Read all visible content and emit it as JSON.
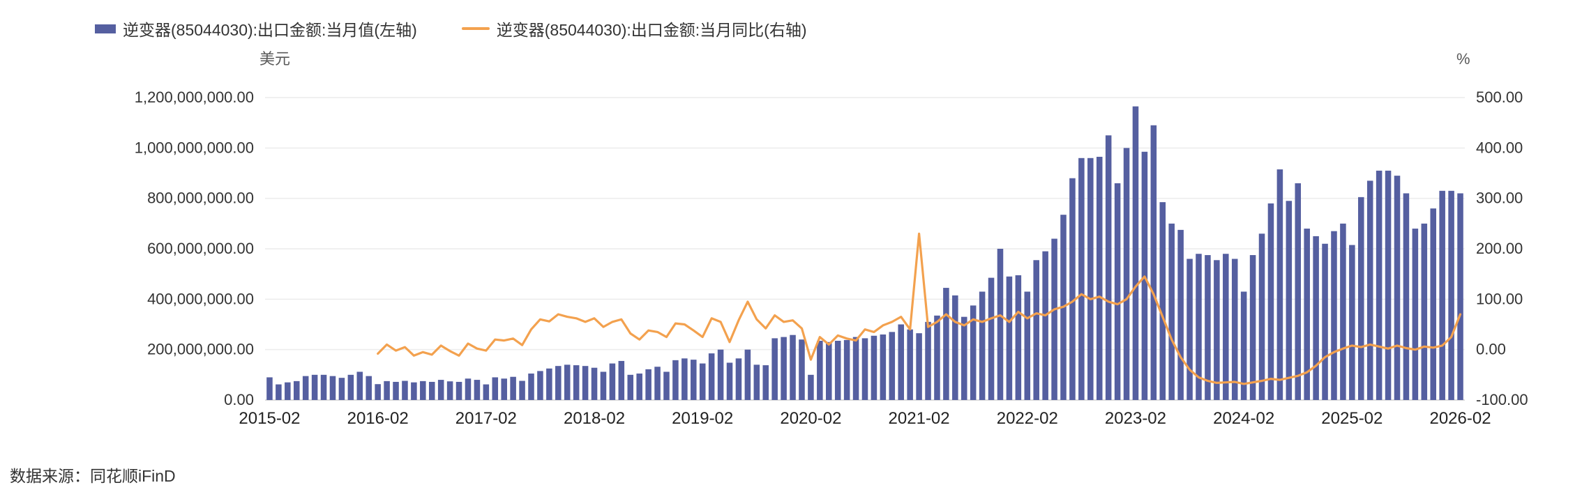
{
  "legend": {
    "items": [
      {
        "label": "逆变器(85044030):出口金额:当月值(左轴)",
        "type": "bar",
        "color": "#555FA0"
      },
      {
        "label": "逆变器(85044030):出口金额:当月同比(右轴)",
        "type": "line",
        "color": "#F3A14E"
      }
    ]
  },
  "footer": {
    "source": "数据来源：同花顺iFinD"
  },
  "chart_data": {
    "type": "combo",
    "bar_color": "#555FA0",
    "line_color": "#F3A14E",
    "grid": true,
    "legend_position": "top-left",
    "categories": [
      "2015-02",
      "2015-03",
      "2015-04",
      "2015-05",
      "2015-06",
      "2015-07",
      "2015-08",
      "2015-09",
      "2015-10",
      "2015-11",
      "2015-12",
      "2016-01",
      "2016-02",
      "2016-03",
      "2016-04",
      "2016-05",
      "2016-06",
      "2016-07",
      "2016-08",
      "2016-09",
      "2016-10",
      "2016-11",
      "2016-12",
      "2017-01",
      "2017-02",
      "2017-03",
      "2017-04",
      "2017-05",
      "2017-06",
      "2017-07",
      "2017-08",
      "2017-09",
      "2017-10",
      "2017-11",
      "2017-12",
      "2018-01",
      "2018-02",
      "2018-03",
      "2018-04",
      "2018-05",
      "2018-06",
      "2018-07",
      "2018-08",
      "2018-09",
      "2018-10",
      "2018-11",
      "2018-12",
      "2019-01",
      "2019-02",
      "2019-03",
      "2019-04",
      "2019-05",
      "2019-06",
      "2019-07",
      "2019-08",
      "2019-09",
      "2019-10",
      "2019-11",
      "2019-12",
      "2020-01",
      "2020-02",
      "2020-03",
      "2020-04",
      "2020-05",
      "2020-06",
      "2020-07",
      "2020-08",
      "2020-09",
      "2020-10",
      "2020-11",
      "2020-12",
      "2021-01",
      "2021-02",
      "2021-03",
      "2021-04",
      "2021-05",
      "2021-06",
      "2021-07",
      "2021-08",
      "2021-09",
      "2021-10",
      "2021-11",
      "2021-12",
      "2022-01",
      "2022-02",
      "2022-03",
      "2022-04",
      "2022-05",
      "2022-06",
      "2022-07",
      "2022-08",
      "2022-09",
      "2022-10",
      "2022-11",
      "2022-12",
      "2023-01",
      "2023-02",
      "2023-03",
      "2023-04",
      "2023-05",
      "2023-06",
      "2023-07",
      "2023-08",
      "2023-09",
      "2023-10",
      "2023-11",
      "2023-12",
      "2024-01",
      "2024-02",
      "2024-03",
      "2024-04",
      "2024-05",
      "2024-06",
      "2024-07",
      "2024-08",
      "2024-09",
      "2024-10",
      "2024-11",
      "2024-12",
      "2025-01",
      "2025-02",
      "2025-03",
      "2025-04",
      "2025-05",
      "2025-06",
      "2025-07",
      "2025-08",
      "2025-09",
      "2025-10",
      "2025-11",
      "2025-12",
      "2026-01",
      "2026-02"
    ],
    "x_tick_labels": [
      "2015-02",
      "2016-02",
      "2017-02",
      "2018-02",
      "2019-02",
      "2020-02",
      "2021-02",
      "2022-02",
      "2023-02",
      "2024-02",
      "2025-02",
      "2026-02"
    ],
    "series": [
      {
        "name": "逆变器(85044030):出口金额:当月值(左轴)",
        "type": "bar",
        "axis": "left",
        "unit": "美元",
        "color": "#555FA0",
        "values_million_usd": [
          90,
          62,
          70,
          75,
          95,
          100,
          100,
          95,
          88,
          100,
          112,
          95,
          63,
          75,
          72,
          76,
          70,
          75,
          72,
          80,
          74,
          72,
          85,
          80,
          62,
          90,
          85,
          92,
          76,
          105,
          115,
          125,
          135,
          140,
          138,
          135,
          128,
          112,
          145,
          155,
          100,
          105,
          122,
          132,
          112,
          158,
          165,
          160,
          145,
          185,
          200,
          148,
          165,
          200,
          140,
          138,
          245,
          250,
          258,
          240,
          100,
          235,
          230,
          235,
          238,
          250,
          245,
          255,
          260,
          270,
          300,
          280,
          265,
          310,
          335,
          445,
          415,
          330,
          375,
          430,
          485,
          600,
          490,
          495,
          430,
          555,
          590,
          640,
          735,
          880,
          960,
          960,
          965,
          1050,
          860,
          1000,
          1165,
          985,
          1090,
          785,
          700,
          675,
          560,
          580,
          575,
          555,
          580,
          560,
          430,
          575,
          660,
          780,
          915,
          790,
          860,
          680,
          650,
          620,
          670,
          700,
          615,
          805,
          870,
          910,
          910,
          890,
          820,
          680,
          700,
          760,
          830,
          830,
          820
        ]
      },
      {
        "name": "逆变器(85044030):出口金额:当月同比(右轴)",
        "type": "line",
        "axis": "right",
        "unit": "%",
        "color": "#F3A14E",
        "values_pct": [
          null,
          null,
          null,
          null,
          null,
          null,
          null,
          null,
          null,
          null,
          null,
          null,
          -8,
          10,
          -2,
          5,
          -12,
          -5,
          -10,
          8,
          -3,
          -12,
          12,
          2,
          -2,
          20,
          18,
          22,
          9,
          40,
          60,
          56,
          70,
          65,
          62,
          55,
          62,
          45,
          55,
          60,
          32,
          20,
          38,
          35,
          25,
          52,
          50,
          38,
          25,
          62,
          55,
          15,
          58,
          95,
          60,
          42,
          68,
          55,
          58,
          42,
          -20,
          25,
          10,
          28,
          22,
          18,
          40,
          35,
          48,
          55,
          65,
          40,
          230,
          45,
          55,
          70,
          55,
          48,
          60,
          55,
          62,
          68,
          55,
          75,
          62,
          72,
          68,
          80,
          85,
          95,
          110,
          100,
          105,
          95,
          90,
          100,
          125,
          145,
          110,
          65,
          20,
          -15,
          -40,
          -55,
          -62,
          -66,
          -65,
          -64,
          -68,
          -65,
          -62,
          -58,
          -60,
          -56,
          -52,
          -45,
          -32,
          -15,
          -5,
          2,
          8,
          5,
          10,
          6,
          2,
          8,
          3,
          0,
          6,
          4,
          8,
          25,
          70
        ]
      }
    ],
    "axis_left": {
      "unit": "美元",
      "min": 0,
      "max": 1200000000,
      "tick_step": 200000000,
      "tick_labels": [
        "0.00",
        "200,000,000.00",
        "400,000,000.00",
        "600,000,000.00",
        "800,000,000.00",
        "1,000,000,000.00",
        "1,200,000,000.00"
      ]
    },
    "axis_right": {
      "unit": "%",
      "min": -100,
      "max": 500,
      "tick_step": 100,
      "tick_labels": [
        "-100.00",
        "0.00",
        "100.00",
        "200.00",
        "300.00",
        "400.00",
        "500.00"
      ]
    }
  }
}
